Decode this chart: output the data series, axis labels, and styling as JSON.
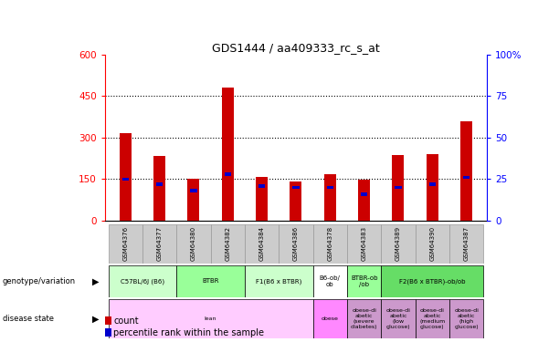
{
  "title": "GDS1444 / aa409333_rc_s_at",
  "samples": [
    "GSM64376",
    "GSM64377",
    "GSM64380",
    "GSM64382",
    "GSM64384",
    "GSM64386",
    "GSM64378",
    "GSM64383",
    "GSM64389",
    "GSM64390",
    "GSM64387"
  ],
  "count_values": [
    315,
    235,
    150,
    480,
    158,
    140,
    168,
    148,
    238,
    242,
    360
  ],
  "percentile_values": [
    25,
    22,
    18,
    28,
    21,
    20,
    20,
    16,
    20,
    22,
    26
  ],
  "left_ylim": [
    0,
    600
  ],
  "right_ylim": [
    0,
    100
  ],
  "left_yticks": [
    0,
    150,
    300,
    450,
    600
  ],
  "right_yticks": [
    0,
    25,
    50,
    75,
    100
  ],
  "left_yticklabels": [
    "0",
    "150",
    "300",
    "450",
    "600"
  ],
  "right_yticklabels": [
    "0",
    "25",
    "50",
    "75",
    "100%"
  ],
  "left_tick_color": "red",
  "right_tick_color": "blue",
  "bar_color": "#cc0000",
  "percentile_color": "#0000cc",
  "genotype_groups": [
    {
      "label": "C57BL/6J (B6)",
      "span": [
        0,
        2
      ],
      "color": "#ccffcc"
    },
    {
      "label": "BTBR",
      "span": [
        2,
        4
      ],
      "color": "#99ff99"
    },
    {
      "label": "F1(B6 x BTBR)",
      "span": [
        4,
        6
      ],
      "color": "#ccffcc"
    },
    {
      "label": "B6-ob/\nob",
      "span": [
        6,
        7
      ],
      "color": "#ffffff"
    },
    {
      "label": "BTBR-ob\n/ob",
      "span": [
        7,
        8
      ],
      "color": "#99ff99"
    },
    {
      "label": "F2(B6 x BTBR)-ob/ob",
      "span": [
        8,
        11
      ],
      "color": "#66dd66"
    }
  ],
  "disease_groups": [
    {
      "label": "lean",
      "span": [
        0,
        6
      ],
      "color": "#ffccff"
    },
    {
      "label": "obese",
      "span": [
        6,
        7
      ],
      "color": "#ff88ff"
    },
    {
      "label": "obese-di\nabetic\n(severe\ndiabetes)",
      "span": [
        7,
        8
      ],
      "color": "#cc99cc"
    },
    {
      "label": "obese-di\nabetic\n(low\nglucose)",
      "span": [
        8,
        9
      ],
      "color": "#cc99cc"
    },
    {
      "label": "obese-di\nabetic\n(medium\nglucose)",
      "span": [
        9,
        10
      ],
      "color": "#cc99cc"
    },
    {
      "label": "obese-di\nabetic\n(high\nglucose)",
      "span": [
        10,
        11
      ],
      "color": "#cc99cc"
    }
  ],
  "sample_box_color": "#cccccc",
  "sample_box_edge": "#999999"
}
